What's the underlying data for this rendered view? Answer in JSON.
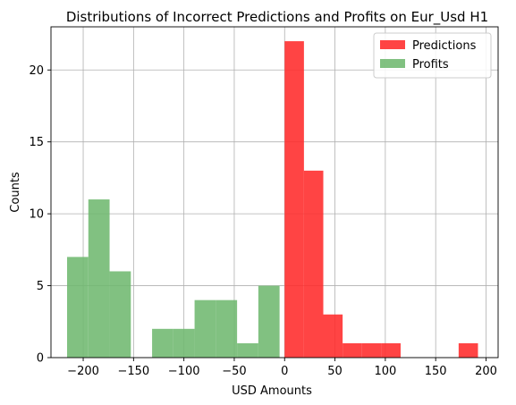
{
  "chart_data": {
    "type": "histogram",
    "title": "Distributions of Incorrect Predictions and Profits on Eur_Usd H1",
    "xlabel": "USD Amounts",
    "ylabel": "Counts",
    "xlim": [
      -232,
      212
    ],
    "ylim": [
      0,
      23
    ],
    "xticks": [
      -200,
      -150,
      -100,
      -50,
      0,
      50,
      100,
      150,
      200
    ],
    "xtick_labels": [
      "−200",
      "−150",
      "−100",
      "−50",
      "0",
      "50",
      "100",
      "150",
      "200"
    ],
    "yticks": [
      0,
      5,
      10,
      15,
      20
    ],
    "ytick_labels": [
      "0",
      "5",
      "10",
      "15",
      "20"
    ],
    "grid": true,
    "legend_position": "top-right",
    "series": [
      {
        "name": "Profits",
        "color": "#6fb86f",
        "opacity": 0.88,
        "bins": [
          {
            "x0": -216.0,
            "x1": -194.9,
            "count": 7
          },
          {
            "x0": -194.9,
            "x1": -173.8,
            "count": 11
          },
          {
            "x0": -173.8,
            "x1": -152.7,
            "count": 6
          },
          {
            "x0": -152.7,
            "x1": -131.6,
            "count": 0
          },
          {
            "x0": -131.6,
            "x1": -110.5,
            "count": 2
          },
          {
            "x0": -110.5,
            "x1": -89.4,
            "count": 2
          },
          {
            "x0": -89.4,
            "x1": -68.3,
            "count": 4
          },
          {
            "x0": -68.3,
            "x1": -47.2,
            "count": 4
          },
          {
            "x0": -47.2,
            "x1": -26.1,
            "count": 1
          },
          {
            "x0": -26.1,
            "x1": -5.0,
            "count": 5
          }
        ]
      },
      {
        "name": "Predictions",
        "color": "#ff2a2a",
        "opacity": 0.88,
        "bins": [
          {
            "x0": 0.0,
            "x1": 19.2,
            "count": 22
          },
          {
            "x0": 19.2,
            "x1": 38.4,
            "count": 13
          },
          {
            "x0": 38.4,
            "x1": 57.6,
            "count": 3
          },
          {
            "x0": 57.6,
            "x1": 76.8,
            "count": 1
          },
          {
            "x0": 76.8,
            "x1": 96.0,
            "count": 1
          },
          {
            "x0": 96.0,
            "x1": 115.2,
            "count": 1
          },
          {
            "x0": 115.2,
            "x1": 134.4,
            "count": 0
          },
          {
            "x0": 134.4,
            "x1": 153.6,
            "count": 0
          },
          {
            "x0": 153.6,
            "x1": 172.8,
            "count": 0
          },
          {
            "x0": 172.8,
            "x1": 192.0,
            "count": 1
          }
        ]
      }
    ],
    "legend_order": [
      "Predictions",
      "Profits"
    ]
  }
}
